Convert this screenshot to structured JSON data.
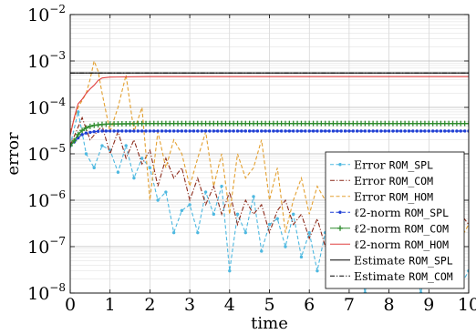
{
  "chart_data": {
    "type": "line",
    "title": "",
    "xlabel": "time",
    "ylabel": "error",
    "xlim": [
      0,
      10
    ],
    "ylim": [
      1e-08,
      0.01
    ],
    "yscale": "log",
    "grid": true,
    "legend_position": "lower-right",
    "x_ticks": [
      {
        "value": 0,
        "label": "0"
      },
      {
        "value": 1,
        "label": "1"
      },
      {
        "value": 2,
        "label": "2"
      },
      {
        "value": 3,
        "label": "3"
      },
      {
        "value": 4,
        "label": "4"
      },
      {
        "value": 5,
        "label": "5"
      },
      {
        "value": 6,
        "label": "6"
      },
      {
        "value": 7,
        "label": "7"
      },
      {
        "value": 8,
        "label": "8"
      },
      {
        "value": 9,
        "label": "9"
      },
      {
        "value": 10,
        "label": "10"
      }
    ],
    "y_ticks": [
      {
        "value": 1e-08,
        "base": "10",
        "exp": "−8"
      },
      {
        "value": 1e-07,
        "base": "10",
        "exp": "−7"
      },
      {
        "value": 1e-06,
        "base": "10",
        "exp": "−6"
      },
      {
        "value": 1e-05,
        "base": "10",
        "exp": "−5"
      },
      {
        "value": 0.0001,
        "base": "10",
        "exp": "−4"
      },
      {
        "value": 0.001,
        "base": "10",
        "exp": "−3"
      },
      {
        "value": 0.01,
        "base": "10",
        "exp": "−2"
      }
    ],
    "series": [
      {
        "prefix": "Error ",
        "code": "ROM_SPL",
        "color": "#4db8e0",
        "style": "dash",
        "marker": "dot",
        "x": [
          0,
          0.2,
          0.4,
          0.6,
          0.8,
          1.0,
          1.2,
          1.4,
          1.6,
          1.8,
          2.0,
          2.2,
          2.4,
          2.6,
          2.8,
          3.0,
          3.2,
          3.4,
          3.6,
          3.8,
          4.0,
          4.2,
          4.4,
          4.6,
          4.8,
          5.0,
          5.2,
          5.4,
          5.6,
          5.8,
          6.0,
          6.2,
          6.4,
          6.6,
          6.8,
          7.0,
          7.2,
          7.4,
          7.6,
          7.8,
          8.0,
          8.2,
          8.4,
          8.6,
          8.8,
          9.0,
          9.2,
          9.4,
          9.6,
          9.8,
          10.0
        ],
        "y": [
          1.5e-05,
          8e-05,
          1e-05,
          5e-06,
          1.5e-05,
          1.2e-05,
          4e-06,
          1.5e-05,
          3e-06,
          8e-06,
          5e-06,
          1e-06,
          1.5e-06,
          2e-07,
          6e-07,
          8e-07,
          2e-07,
          1.5e-06,
          5e-07,
          2e-06,
          3e-08,
          5e-07,
          2e-07,
          1.2e-06,
          8e-08,
          3e-07,
          4e-07,
          1e-07,
          5e-07,
          6e-08,
          2e-07,
          3e-08,
          2e-07,
          5e-07,
          4e-08,
          1.5e-07,
          8e-08,
          1e-08,
          2e-07,
          5e-08,
          1.5e-07,
          3e-08,
          2e-07,
          5e-08,
          1e-08,
          1e-07,
          4e-08,
          2e-08,
          5e-08,
          1.5e-08,
          3e-08
        ]
      },
      {
        "prefix": "Error ",
        "code": "ROM_COM",
        "color": "#8b2a1a",
        "style": "dashdot",
        "marker": "none",
        "x": [
          0,
          0.3,
          0.5,
          0.8,
          1.0,
          1.2,
          1.4,
          1.6,
          1.8,
          2.0,
          2.2,
          2.4,
          2.6,
          2.8,
          3.0,
          3.2,
          3.4,
          3.6,
          3.8,
          4.0,
          4.2,
          4.4,
          4.6,
          4.8,
          5.0,
          5.2,
          5.4,
          5.6,
          5.8,
          6.0,
          6.2,
          6.4,
          6.6,
          6.8,
          7.0,
          7.2,
          7.4,
          7.6,
          7.8,
          8.0,
          8.2,
          8.4,
          8.6,
          8.8,
          9.0,
          9.2,
          9.4,
          9.6,
          9.8,
          10.0
        ],
        "y": [
          1.5e-05,
          6e-05,
          2e-05,
          4e-05,
          1e-05,
          3e-05,
          8e-06,
          2e-05,
          6e-06,
          1.2e-05,
          2e-06,
          8e-06,
          3e-06,
          5e-06,
          1e-06,
          3e-06,
          8e-07,
          2e-06,
          5e-07,
          1.5e-06,
          3e-07,
          1e-06,
          5e-07,
          8e-07,
          2e-07,
          6e-07,
          1e-06,
          3e-07,
          5e-07,
          1.5e-07,
          4e-07,
          1e-07,
          3e-07,
          8e-07,
          2e-07,
          5e-07,
          1e-07,
          3e-07,
          6e-08,
          2e-07,
          4e-07,
          1e-07,
          3e-07,
          5e-08,
          2e-07,
          1e-07,
          3e-07,
          1.5e-07,
          5e-07,
          3e-07
        ]
      },
      {
        "prefix": "Error ",
        "code": "ROM_HOM",
        "color": "#e3a030",
        "style": "dash",
        "marker": "none",
        "x": [
          0,
          0.2,
          0.4,
          0.5,
          0.6,
          0.7,
          0.8,
          1.0,
          1.2,
          1.4,
          1.6,
          1.8,
          2.0,
          2.2,
          2.4,
          2.6,
          2.8,
          3.0,
          3.2,
          3.4,
          3.6,
          3.8,
          4.0,
          4.2,
          4.4,
          4.6,
          4.8,
          5.0,
          5.2,
          5.4,
          5.6,
          5.8,
          6.0,
          6.2,
          6.4,
          6.6,
          6.8,
          7.0,
          7.2,
          7.4,
          7.6,
          7.8,
          8.0,
          8.2,
          8.4,
          8.6,
          8.8,
          9.0,
          9.2,
          9.4,
          9.6,
          9.8,
          10.0
        ],
        "y": [
          3e-05,
          0.0001,
          0.0002,
          0.0004,
          0.001,
          0.0006,
          0.0002,
          3e-05,
          0.0001,
          0.0005,
          3e-05,
          0.0001,
          1e-06,
          3e-05,
          5e-06,
          2e-05,
          1e-05,
          2e-06,
          8e-06,
          3e-05,
          2e-06,
          1e-05,
          5e-07,
          1e-05,
          3e-06,
          5e-06,
          2e-05,
          1e-06,
          5e-06,
          2e-07,
          1e-06,
          3e-06,
          5e-07,
          2e-06,
          1e-06,
          3e-06,
          1e-07,
          5e-07,
          2e-06,
          3e-07,
          1e-06,
          8e-07,
          2e-07,
          5e-07,
          2e-06,
          3e-07,
          8e-07,
          1e-07,
          5e-07,
          2e-07,
          8e-07,
          1.5e-07,
          3e-07
        ]
      },
      {
        "prefix": "ℓ2-norm ",
        "code": "ROM_SPL",
        "color": "#1f3fd6",
        "style": "dash",
        "marker": "dot",
        "x": [
          0,
          0.1,
          0.2,
          0.3,
          0.4,
          0.5,
          0.6,
          0.8,
          1.0,
          1.5,
          2.0,
          3.0,
          4.0,
          5.0,
          6.0,
          7.0,
          8.0,
          9.0,
          10.0
        ],
        "y": [
          1.5e-05,
          1.8e-05,
          2.2e-05,
          2.6e-05,
          2.8e-05,
          2.9e-05,
          3e-05,
          3.1e-05,
          3.1e-05,
          3.1e-05,
          3.1e-05,
          3.1e-05,
          3.1e-05,
          3.1e-05,
          3.1e-05,
          3.1e-05,
          3.1e-05,
          3.1e-05,
          3.1e-05
        ]
      },
      {
        "prefix": "ℓ2-norm ",
        "code": "ROM_COM",
        "color": "#2e8b2e",
        "style": "solid",
        "marker": "plus",
        "x": [
          0,
          0.1,
          0.2,
          0.3,
          0.4,
          0.5,
          0.6,
          0.8,
          1.0,
          1.5,
          2.0,
          3.0,
          4.0,
          5.0,
          6.0,
          7.0,
          8.0,
          9.0,
          10.0
        ],
        "y": [
          1.5e-05,
          1.9e-05,
          2.6e-05,
          3.2e-05,
          3.6e-05,
          3.9e-05,
          4.1e-05,
          4.3e-05,
          4.4e-05,
          4.45e-05,
          4.5e-05,
          4.5e-05,
          4.5e-05,
          4.5e-05,
          4.5e-05,
          4.5e-05,
          4.5e-05,
          4.5e-05,
          4.5e-05
        ]
      },
      {
        "prefix": "ℓ2-norm ",
        "code": "ROM_HOM",
        "color": "#e04040",
        "style": "solid",
        "marker": "none",
        "x": [
          0,
          0.1,
          0.2,
          0.3,
          0.4,
          0.5,
          0.6,
          0.7,
          0.8,
          1.0,
          2.0,
          4.0,
          6.0,
          8.0,
          10.0
        ],
        "y": [
          2.5e-05,
          6e-05,
          0.00012,
          0.00015,
          0.0002,
          0.00025,
          0.0003,
          0.00038,
          0.00043,
          0.00045,
          0.00046,
          0.00046,
          0.00046,
          0.00046,
          0.00046
        ]
      },
      {
        "prefix": "Estimate ",
        "code": "ROM_SPL",
        "color": "#000000",
        "style": "solid",
        "marker": "none",
        "x": [
          0,
          10
        ],
        "y": [
          0.00055,
          0.00055
        ]
      },
      {
        "prefix": "Estimate ",
        "code": "ROM_COM",
        "color": "#000000",
        "style": "dashdot",
        "marker": "none",
        "x": [
          0,
          10
        ],
        "y": [
          0.00055,
          0.00055
        ]
      }
    ]
  }
}
